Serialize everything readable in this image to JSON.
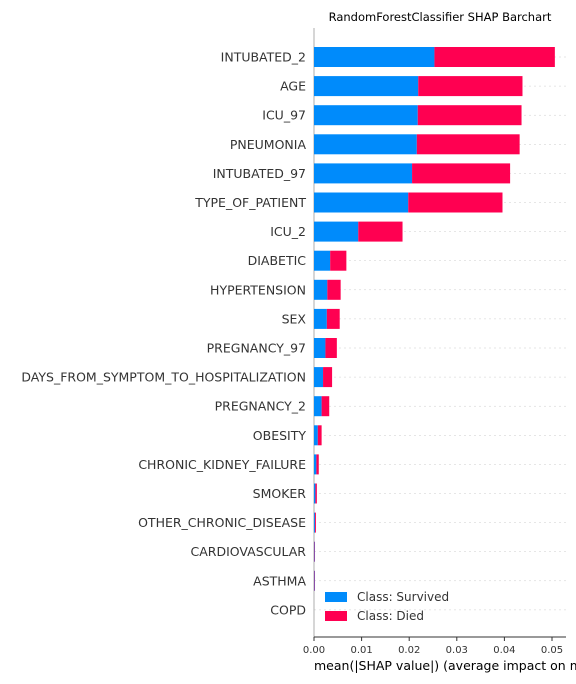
{
  "chart_data": {
    "type": "bar",
    "stacked": true,
    "orientation": "horizontal",
    "title": "RandomForestClassifier SHAP Barchart",
    "xlabel": "mean(|SHAP value|) (average impact on model output magnitude)",
    "ylabel": "",
    "xlim": [
      0,
      0.053
    ],
    "xticks": [
      "0.00",
      "0.01",
      "0.02",
      "0.03",
      "0.04",
      "0.05"
    ],
    "xtick_values": [
      0,
      0.01,
      0.02,
      0.03,
      0.04,
      0.05
    ],
    "legend_position": "lower-right",
    "categories": [
      "INTUBATED_2",
      "AGE",
      "ICU_97",
      "PNEUMONIA",
      "INTUBATED_97",
      "TYPE_OF_PATIENT",
      "ICU_2",
      "DIABETIC",
      "HYPERTENSION",
      "SEX",
      "PREGNANCY_97",
      "DAYS_FROM_SYMPTOM_TO_HOSPITALIZATION",
      "PREGNANCY_2",
      "OBESITY",
      "CHRONIC_KIDNEY_FAILURE",
      "SMOKER",
      "OTHER_CHRONIC_DISEASE",
      "CARDIOVASCULAR",
      "ASTHMA",
      "COPD"
    ],
    "series": [
      {
        "name": "Class: Survived",
        "color": "#008bfb",
        "values": [
          0.0253,
          0.0219,
          0.0218,
          0.0216,
          0.0206,
          0.0198,
          0.0093,
          0.0034,
          0.0028,
          0.0027,
          0.0024,
          0.0019,
          0.0016,
          0.0008,
          0.0005,
          0.0003,
          0.0002,
          0.0001,
          0.0001,
          0.0
        ]
      },
      {
        "name": "Class: Died",
        "color": "#ff0051",
        "values": [
          0.0253,
          0.0219,
          0.0218,
          0.0216,
          0.0206,
          0.0198,
          0.0093,
          0.0034,
          0.0028,
          0.0027,
          0.0024,
          0.0019,
          0.0016,
          0.0008,
          0.0005,
          0.0003,
          0.0002,
          0.0001,
          0.0001,
          0.0
        ]
      }
    ]
  }
}
